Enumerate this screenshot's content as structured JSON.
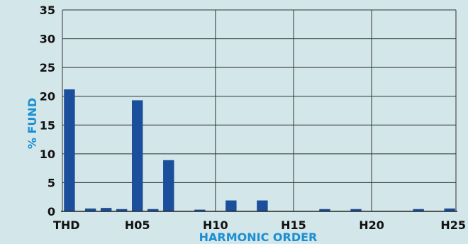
{
  "chart_data": {
    "type": "bar",
    "title": "",
    "xlabel": "HARMONIC ORDER",
    "ylabel": "% FUND",
    "ylim": [
      0,
      35
    ],
    "yticks": [
      0,
      5,
      10,
      15,
      20,
      25,
      30,
      35
    ],
    "x_ticks": [
      {
        "label": "THD",
        "order": 0
      },
      {
        "label": "H05",
        "order": 5
      },
      {
        "label": "H10",
        "order": 10
      },
      {
        "label": "H15",
        "order": 15
      },
      {
        "label": "H20",
        "order": 20
      },
      {
        "label": "H25",
        "order": 25
      }
    ],
    "grid": true,
    "categories": [
      "THD",
      "H02",
      "H03",
      "H04",
      "H05",
      "H06",
      "H07",
      "H09",
      "H11",
      "H13",
      "H17",
      "H19",
      "H23",
      "H25"
    ],
    "orders": [
      0,
      2,
      3,
      4,
      5,
      6,
      7,
      9,
      11,
      13,
      17,
      19,
      23,
      25
    ],
    "values": [
      21.2,
      0.5,
      0.6,
      0.4,
      19.3,
      0.4,
      8.9,
      0.3,
      1.9,
      1.9,
      0.4,
      0.4,
      0.4,
      0.5
    ],
    "colors": {
      "bar": "#1b4f9c",
      "axis_title": "#1a8fd1",
      "background": "#d3e6ea",
      "grid": "#333333"
    }
  }
}
